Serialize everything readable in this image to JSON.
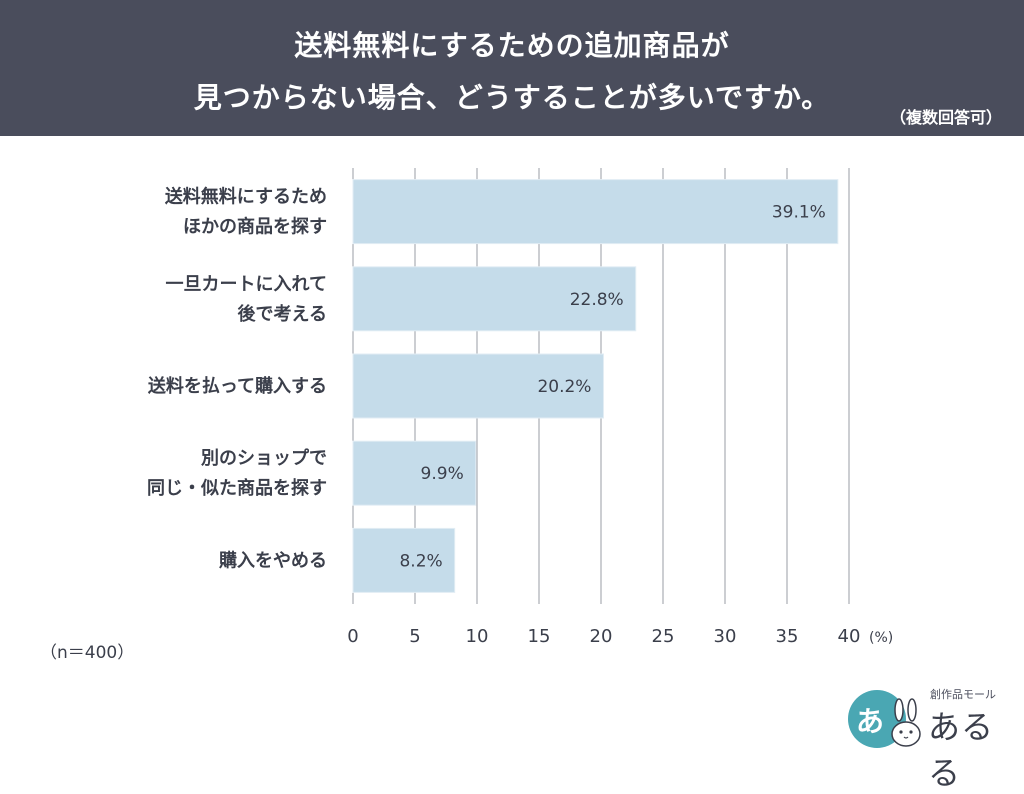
{
  "header": {
    "title_line1": "送料無料にするための追加商品が",
    "title_line2": "見つからない場合、どうすることが多いですか。",
    "subtitle": "（複数回答可）"
  },
  "footer": {
    "sample_size": "（n＝400）",
    "logo_small": "創作品モール",
    "logo_main": "あるる",
    "logo_badge": "あ"
  },
  "chart_data": {
    "type": "bar",
    "orientation": "horizontal",
    "categories": [
      [
        "送料無料にするため",
        "ほかの商品を探す"
      ],
      [
        "一旦カートに入れて",
        "後で考える"
      ],
      [
        "送料を払って購入する"
      ],
      [
        "別のショップで",
        "同じ・似た商品を探す"
      ],
      [
        "購入をやめる"
      ]
    ],
    "values": [
      39.1,
      22.8,
      20.2,
      9.9,
      8.2
    ],
    "value_labels": [
      "39.1%",
      "22.8%",
      "20.2%",
      "9.9%",
      "8.2%"
    ],
    "xticks": [
      "0",
      "5",
      "10",
      "15",
      "20",
      "25",
      "30",
      "35",
      "40"
    ],
    "xlim": [
      0,
      40
    ],
    "unit": "(%)",
    "grid": true,
    "bar_color": "#c5dcea",
    "bar_border_color": "#e2edf4"
  }
}
